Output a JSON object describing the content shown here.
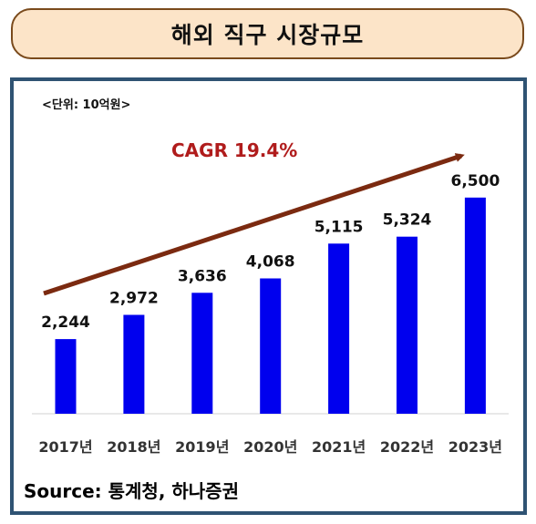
{
  "header": {
    "title": "해외 직구 시장규모"
  },
  "chart_data": {
    "type": "bar",
    "unit_label": "<단위: 10억원>",
    "annotation": "CAGR 19.4%",
    "categories": [
      "2017년",
      "2018년",
      "2019년",
      "2020년",
      "2021년",
      "2022년",
      "2023년"
    ],
    "values": [
      2244,
      2972,
      3636,
      4068,
      5115,
      5324,
      6500
    ],
    "value_labels": [
      "2,244",
      "2,972",
      "3,636",
      "4,068",
      "5,115",
      "5,324",
      "6,500"
    ],
    "ylim": [
      0,
      7000
    ],
    "grid": false,
    "colors": {
      "bar": "#0000ee",
      "arrow": "#7b2a10",
      "annotation": "#b01c1c"
    }
  },
  "footer": {
    "source": "Source: 통계청, 하나증권"
  }
}
